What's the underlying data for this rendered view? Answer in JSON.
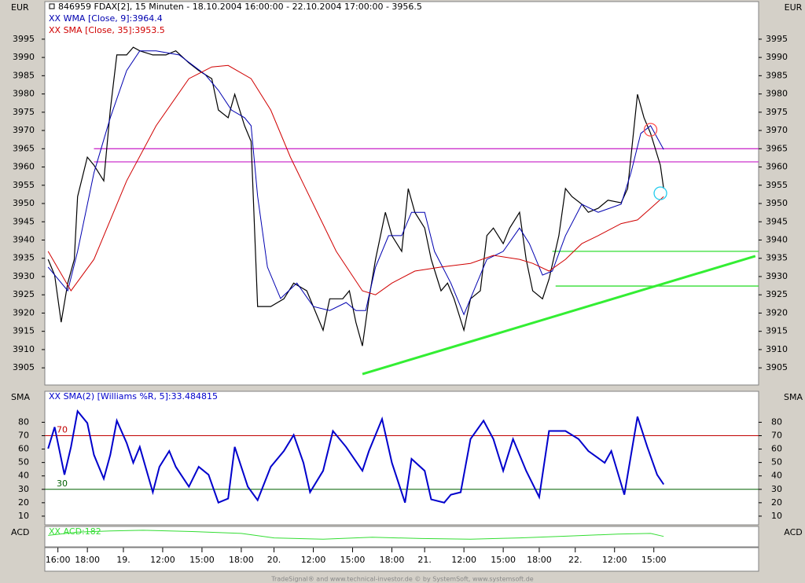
{
  "chart_data": [
    {
      "type": "line",
      "unit_label": "EUR",
      "title": "846959  FDAX[2], 15 Minuten - 18.10.2004 16:00:00 - 22.10.2004 17:00:00 - 3956.5",
      "xlim": [
        0,
        218
      ],
      "xticks": [
        {
          "value": 4,
          "label": "16:00"
        },
        {
          "value": 13,
          "label": "18:00"
        },
        {
          "value": 24,
          "label": "19."
        },
        {
          "value": 36,
          "label": "12:00"
        },
        {
          "value": 48,
          "label": "15:00"
        },
        {
          "value": 60,
          "label": "18:00"
        },
        {
          "value": 70,
          "label": "20."
        },
        {
          "value": 82,
          "label": "12:00"
        },
        {
          "value": 94,
          "label": "15:00"
        },
        {
          "value": 106,
          "label": "18:00"
        },
        {
          "value": 116,
          "label": "21."
        },
        {
          "value": 128,
          "label": "12:00"
        },
        {
          "value": 140,
          "label": "15:00"
        },
        {
          "value": 151,
          "label": "18:00"
        },
        {
          "value": 162,
          "label": "22."
        },
        {
          "value": 174,
          "label": "12:00"
        },
        {
          "value": 186,
          "label": "15:00"
        }
      ],
      "ylim": [
        3900.3,
        4005.3
      ],
      "yticks": [
        3905,
        3910,
        3915,
        3920,
        3925,
        3930,
        3935,
        3940,
        3945,
        3950,
        3955,
        3960,
        3965,
        3970,
        3975,
        3980,
        3985,
        3990,
        3995
      ],
      "series": [
        {
          "color": "#000000",
          "width": 1.2,
          "x": [
            1,
            3,
            5,
            7,
            9,
            10,
            13,
            15,
            18,
            20,
            22,
            25,
            27,
            29,
            33,
            37,
            40,
            44,
            47,
            51,
            53,
            56,
            58,
            61,
            63,
            65,
            69,
            73,
            76,
            80,
            82,
            85,
            87,
            91,
            93,
            95,
            97,
            99,
            101,
            104,
            106,
            109,
            111,
            113,
            116,
            118,
            121,
            123,
            125,
            128,
            130,
            133,
            135,
            137,
            140,
            142,
            145,
            147,
            149,
            152,
            154,
            157,
            159,
            161,
            164,
            166,
            169,
            172,
            176,
            178,
            181,
            183,
            185,
            188,
            189
          ],
          "values": [
            3934.7,
            3930.4,
            3917.5,
            3928.2,
            3934.7,
            3951.9,
            3962.7,
            3960.5,
            3956.2,
            3975.6,
            3990.7,
            3990.7,
            3992.8,
            3991.8,
            3990.7,
            3990.7,
            3991.8,
            3988.5,
            3986.4,
            3984.2,
            3975.6,
            3973.5,
            3979.9,
            3971.3,
            3967.0,
            3921.8,
            3921.8,
            3923.9,
            3928.2,
            3926.1,
            3921.8,
            3915.3,
            3923.9,
            3923.9,
            3926.1,
            3917.5,
            3911.0,
            3923.9,
            3934.7,
            3947.6,
            3941.2,
            3936.9,
            3954.1,
            3947.6,
            3943.3,
            3934.7,
            3926.1,
            3928.2,
            3923.9,
            3915.3,
            3923.9,
            3926.1,
            3941.2,
            3943.3,
            3939.0,
            3943.3,
            3947.6,
            3934.7,
            3926.1,
            3923.9,
            3929.3,
            3941.2,
            3954.1,
            3951.9,
            3949.8,
            3947.6,
            3948.7,
            3950.9,
            3950.2,
            3954.1,
            3979.9,
            3973.5,
            3969.2,
            3960.5,
            3954.1
          ]
        },
        {
          "name": "XX WMA [Close, 9]:3964.4",
          "color": "#0000b0",
          "width": 1,
          "x": [
            1,
            7,
            10,
            15,
            20,
            25,
            29,
            34,
            41,
            49,
            53,
            57,
            61,
            63,
            65,
            68,
            72,
            77,
            82,
            87,
            92,
            95,
            98,
            101,
            105,
            109,
            112,
            116,
            119,
            124,
            128,
            131,
            135,
            140,
            145,
            148,
            152,
            155,
            159,
            164,
            169,
            176,
            179,
            182,
            185,
            189
          ],
          "values": [
            3932.6,
            3926.1,
            3936.9,
            3958.4,
            3973.5,
            3986.4,
            3991.8,
            3991.8,
            3990.7,
            3985.3,
            3981.0,
            3975.6,
            3973.5,
            3971.3,
            3952.0,
            3932.6,
            3924.0,
            3928.2,
            3921.8,
            3920.7,
            3922.9,
            3920.7,
            3920.7,
            3932.6,
            3941.2,
            3941.2,
            3947.6,
            3947.6,
            3936.9,
            3928.2,
            3919.6,
            3926.1,
            3934.7,
            3936.9,
            3943.3,
            3939.0,
            3930.4,
            3931.5,
            3941.2,
            3949.8,
            3947.6,
            3949.8,
            3958.4,
            3969.2,
            3971.3,
            3964.8
          ]
        },
        {
          "name": "XX SMA [Close, 35]:3953.5",
          "color": "#d00000",
          "width": 1,
          "x": [
            1,
            8,
            15,
            25,
            34,
            44,
            51,
            56,
            63,
            69,
            75,
            82,
            89,
            97,
            101,
            106,
            113,
            121,
            130,
            137,
            145,
            149,
            154,
            159,
            164,
            169,
            176,
            181,
            185,
            189
          ],
          "values": [
            3936.9,
            3926.1,
            3934.7,
            3956.2,
            3971.3,
            3984.2,
            3987.4,
            3987.8,
            3984.2,
            3975.6,
            3962.7,
            3949.8,
            3936.9,
            3926.1,
            3925.0,
            3928.2,
            3931.5,
            3932.6,
            3933.6,
            3935.8,
            3934.7,
            3933.6,
            3931.5,
            3934.7,
            3939.0,
            3941.2,
            3944.5,
            3945.5,
            3948.7,
            3951.9
          ]
        }
      ],
      "hlines": [
        {
          "value": 3965,
          "from": 15,
          "color": "#cc33cc"
        },
        {
          "value": 3961.4,
          "from": 15,
          "color": "#cc33cc"
        },
        {
          "value": 3936.9,
          "from": 155,
          "color": "#33dd33"
        },
        {
          "value": 3927.4,
          "from": 156,
          "color": "#33dd33"
        }
      ],
      "trendlines": [
        {
          "x": [
            97,
            217
          ],
          "values": [
            3903.3,
            3935.6
          ],
          "color": "#33ee33"
        }
      ],
      "markers": [
        {
          "x": 185,
          "value": 3970.2,
          "color": "#ff5050"
        },
        {
          "x": 188,
          "value": 3952.8,
          "color": "#22ccee"
        }
      ]
    },
    {
      "type": "line",
      "unit_label": "SMA",
      "ylim": [
        3.5,
        103.1
      ],
      "yticks": [
        10,
        20,
        30,
        40,
        50,
        60,
        70,
        80
      ],
      "levels": [
        {
          "value": 70,
          "color": "#c00000"
        },
        {
          "value": 30,
          "color": "#006000"
        }
      ],
      "series": [
        {
          "name": "XX SMA(2) [Williams %R, 5]:33.484815",
          "color": "#0000cc",
          "width": 2,
          "x": [
            1,
            3,
            6,
            8,
            10,
            13,
            15,
            18,
            20,
            22,
            25,
            27,
            29,
            33,
            35,
            38,
            40,
            44,
            47,
            50,
            53,
            56,
            58,
            62,
            65,
            69,
            73,
            76,
            79,
            81,
            85,
            88,
            92,
            97,
            99,
            103,
            106,
            110,
            112,
            116,
            118,
            122,
            124,
            127,
            130,
            134,
            137,
            140,
            143,
            147,
            151,
            154,
            159,
            163,
            166,
            171,
            173,
            177,
            181,
            184,
            187,
            189
          ],
          "values": [
            60.4,
            76.4,
            40.9,
            61.6,
            88.3,
            79.4,
            55.7,
            37.9,
            55.7,
            81.2,
            64.6,
            49.8,
            61.6,
            27.8,
            46.8,
            58.6,
            46.8,
            32.0,
            46.8,
            40.9,
            20.1,
            23.1,
            61.6,
            32.0,
            21.9,
            46.8,
            58.6,
            70.5,
            49.8,
            27.8,
            43.8,
            73.5,
            61.6,
            43.8,
            58.6,
            82.4,
            49.8,
            20.1,
            52.7,
            43.8,
            22.5,
            20.1,
            26.0,
            27.8,
            67.5,
            81.2,
            67.5,
            43.8,
            67.5,
            43.8,
            24.2,
            73.5,
            73.5,
            67.5,
            58.6,
            49.8,
            58.6,
            26.0,
            84.2,
            61.6,
            40.9,
            33.7
          ]
        }
      ]
    },
    {
      "type": "line",
      "unit_label": "ACD",
      "ylim": [
        100,
        260
      ],
      "series": [
        {
          "name": "XX ACD:182",
          "color": "#33dd33",
          "width": 1,
          "x": [
            1,
            10,
            20,
            30,
            45,
            60,
            70,
            85,
            100,
            115,
            130,
            145,
            160,
            175,
            185,
            189
          ],
          "values": [
            190,
            215,
            225,
            230,
            220,
            205,
            170,
            160,
            175,
            165,
            160,
            170,
            185,
            200,
            205,
            182
          ]
        }
      ]
    }
  ],
  "footer": "TradeSignal® and www.technical-investor.de © by SystemSoft, www.systemsoft.de"
}
